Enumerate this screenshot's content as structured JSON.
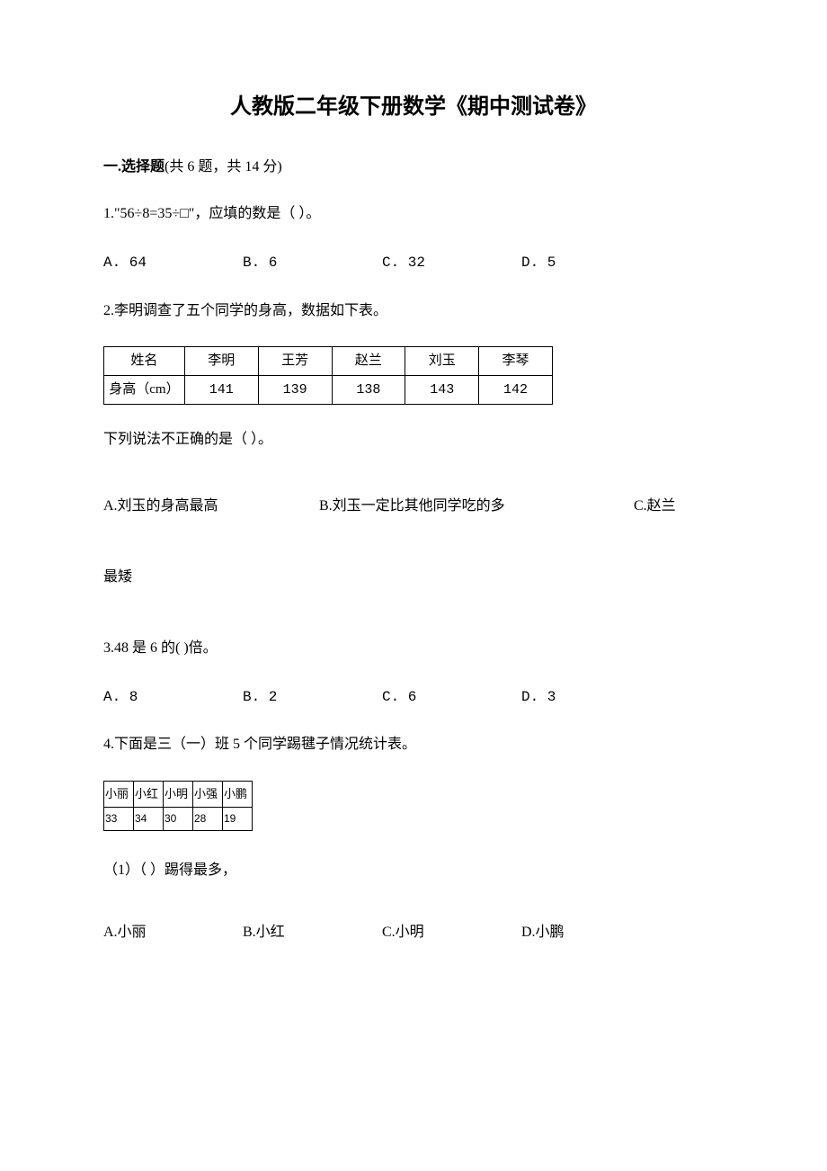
{
  "title": "人教版二年级下册数学《期中测试卷》",
  "section1": {
    "heading_bold": "一.选择题",
    "heading_rest": "(共 6 题，共 14 分)"
  },
  "q1": {
    "text": "1.\"56÷8=35÷□\"，应填的数是（    ）。",
    "opts": {
      "a": "A. 64",
      "b": "B. 6",
      "c": "C. 32",
      "d": "D. 5"
    }
  },
  "q2": {
    "text": "2.李明调查了五个同学的身高，数据如下表。",
    "table": {
      "header_row": [
        "姓名",
        "李明",
        "王芳",
        "赵兰",
        "刘玉",
        "李琴"
      ],
      "data_row_label": "身高（cm）",
      "data_row": [
        "141",
        "139",
        "138",
        "143",
        "142"
      ]
    },
    "follow": "下列说法不正确的是（    ）。",
    "opts": {
      "a": "A.刘玉的身高最高",
      "b": "B.刘玉一定比其他同学吃的多",
      "c": "C.赵兰"
    },
    "cont": "最矮"
  },
  "q3": {
    "text": "3.48 是 6 的(    )倍。",
    "opts": {
      "a": "A. 8",
      "b": "B. 2",
      "c": "C. 6",
      "d": "D. 3"
    }
  },
  "q4": {
    "text": "4.下面是三（一）班 5 个同学踢毽子情况统计表。",
    "table": {
      "header_row": [
        "小丽",
        "小红",
        "小明",
        "小强",
        "小鹏"
      ],
      "data_row": [
        "33",
        "34",
        "30",
        "28",
        "19"
      ]
    },
    "sub1": "（1）（    ）踢得最多，",
    "opts": {
      "a": "A.小丽",
      "b": "B.小红",
      "c": "C.小明",
      "d": "D.小鹏"
    }
  }
}
